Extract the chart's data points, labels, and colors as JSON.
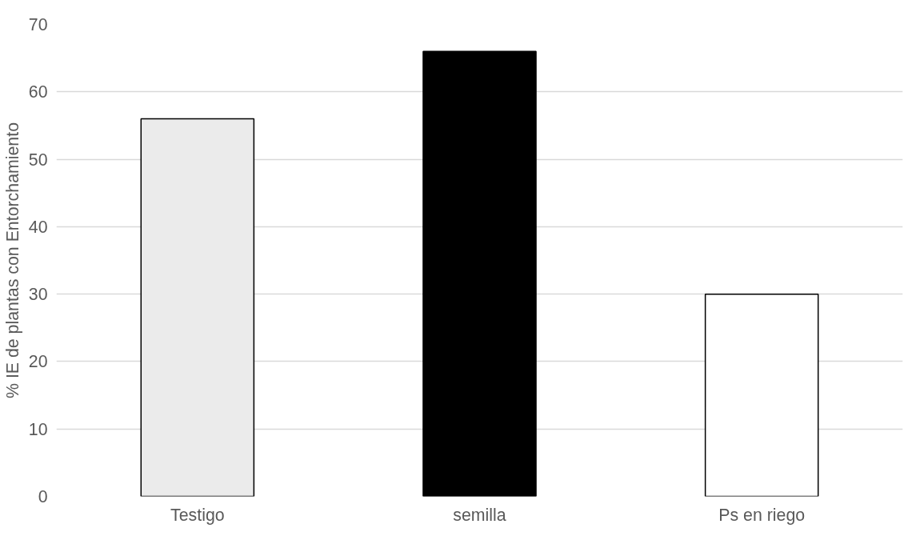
{
  "chart_data": {
    "type": "bar",
    "ylabel": "% IE de plantas con Entorchamiento",
    "categories": [
      "Testigo",
      "semilla",
      "Ps en riego"
    ],
    "values": [
      56,
      66,
      30
    ],
    "colors": [
      "#ebebeb",
      "#000000",
      "#ffffff"
    ],
    "ylim": [
      0,
      70
    ],
    "yticks": [
      0,
      10,
      20,
      30,
      40,
      50,
      60,
      70
    ],
    "grid": "y"
  }
}
